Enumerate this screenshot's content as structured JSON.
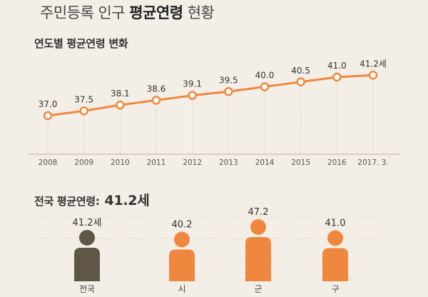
{
  "title": {
    "prefix": "주민등록 인구 ",
    "bold": "평균연령",
    "suffix": " 현황"
  },
  "colors": {
    "orange": "#f0873f",
    "dark": "#5f5646",
    "grid": "#d4cec4",
    "axis": "#b9b2a6"
  },
  "chart_data": [
    {
      "type": "line",
      "title": "연도별 평균연령 변화",
      "categories": [
        "2008",
        "2009",
        "2010",
        "2011",
        "2012",
        "2013",
        "2014",
        "2015",
        "2016",
        "2017. 3."
      ],
      "values": [
        37.0,
        37.5,
        38.1,
        38.6,
        39.1,
        39.5,
        40.0,
        40.5,
        41.0,
        41.2
      ],
      "labels": [
        "37.0",
        "37.5",
        "38.1",
        "38.6",
        "39.1",
        "39.5",
        "40.0",
        "40.5",
        "41.0",
        "41.2세"
      ],
      "grid": "vertical dashed"
    },
    {
      "type": "bar",
      "title_prefix": "전국 평균연령: ",
      "title_value": "41.2세",
      "categories": [
        "전국",
        "시",
        "군",
        "구"
      ],
      "values": [
        41.2,
        40.2,
        47.2,
        41.0
      ],
      "labels": [
        "41.2세",
        "40.2",
        "47.2",
        "41.0"
      ],
      "highlight": "전국"
    }
  ]
}
